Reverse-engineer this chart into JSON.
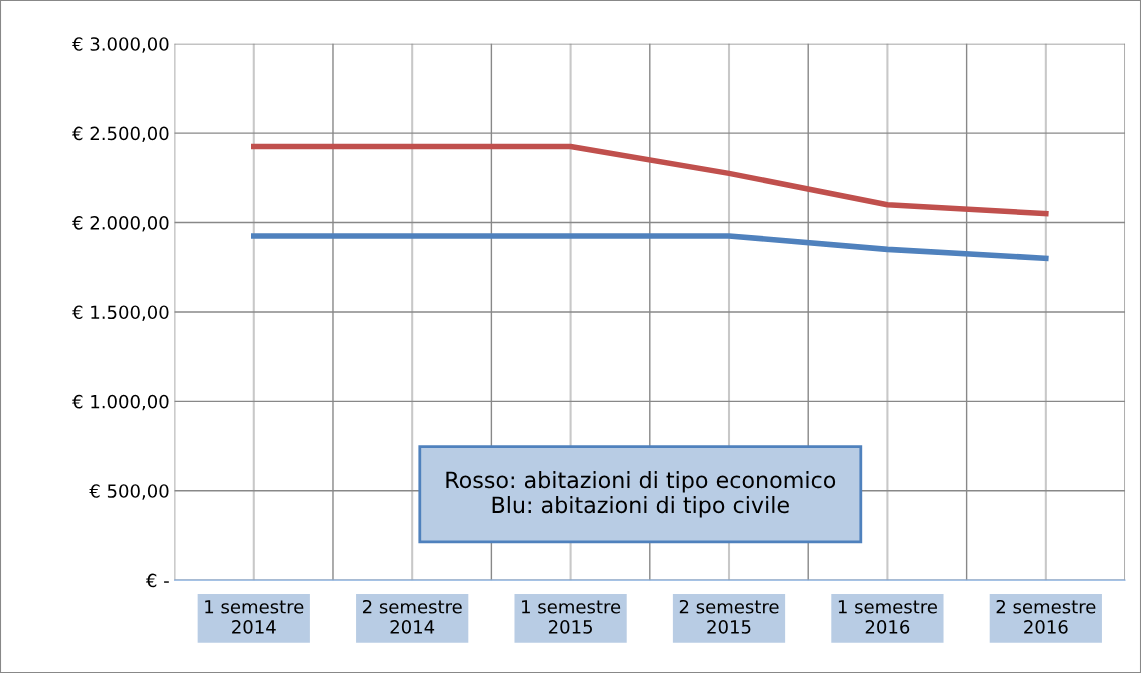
{
  "chart_data": {
    "type": "line",
    "categories": [
      "1 semestre\n2014",
      "2 semestre\n2014",
      "1 semestre\n2015",
      "2 semestre\n2015",
      "1 semestre\n2016",
      "2 semestre\n2016"
    ],
    "series": [
      {
        "color": "#c0504d",
        "values": [
          2425,
          2425,
          2425,
          2275,
          2100,
          2050
        ]
      },
      {
        "color": "#4f81bd",
        "values": [
          1925,
          1925,
          1925,
          1925,
          1850,
          1800
        ]
      }
    ],
    "ylim": [
      0,
      3000
    ],
    "yticks": [
      {
        "value": 0,
        "label": "€ -"
      },
      {
        "value": 500,
        "label": "€ 500,00"
      },
      {
        "value": 1000,
        "label": "€ 1.000,00"
      },
      {
        "value": 1500,
        "label": "€ 1.500,00"
      },
      {
        "value": 2000,
        "label": "€ 2.000,00"
      },
      {
        "value": 2500,
        "label": "€ 2.500,00"
      },
      {
        "value": 3000,
        "label": "€ 3.000,00"
      }
    ],
    "grid": true,
    "legend": false,
    "marker": "none",
    "line_style": "solid",
    "annotations": [
      "Rosso: abitazioni di tipo economico\nBlu: abitazioni di tipo civile"
    ]
  }
}
